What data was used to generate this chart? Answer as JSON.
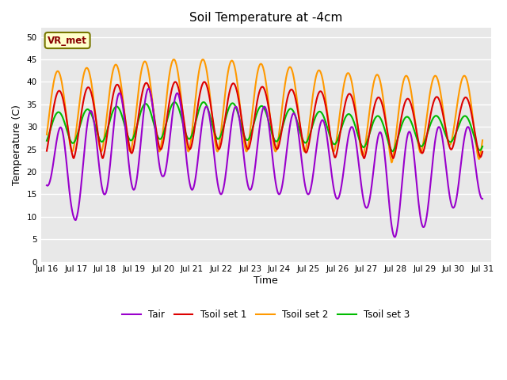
{
  "title": "Soil Temperature at -4cm",
  "xlabel": "Time",
  "ylabel": "Temperature (C)",
  "ylim": [
    0,
    52
  ],
  "yticks": [
    0,
    5,
    10,
    15,
    20,
    25,
    30,
    35,
    40,
    45,
    50
  ],
  "x_tick_labels": [
    "Jul 16",
    "Jul 17",
    "Jul 18",
    "Jul 19",
    "Jul 20",
    "Jul 21",
    "Jul 22",
    "Jul 23",
    "Jul 24",
    "Jul 25",
    "Jul 26",
    "Jul 27",
    "Jul 28",
    "Jul 29",
    "Jul 30",
    "Jul 31"
  ],
  "x_tick_positions": [
    0,
    1,
    2,
    3,
    4,
    5,
    6,
    7,
    8,
    9,
    10,
    11,
    12,
    13,
    14,
    15
  ],
  "colors": {
    "Tair": "#9900cc",
    "Tsoil1": "#dd0000",
    "Tsoil2": "#ff9900",
    "Tsoil3": "#00bb00"
  },
  "legend_labels": [
    "Tair",
    "Tsoil set 1",
    "Tsoil set 2",
    "Tsoil set 3"
  ],
  "annotation_text": "VR_met",
  "annotation_bg": "#ffffcc",
  "annotation_border": "#888800",
  "plot_bg": "#e8e8e8",
  "fig_bg": "#ffffff",
  "linewidth": 1.5
}
